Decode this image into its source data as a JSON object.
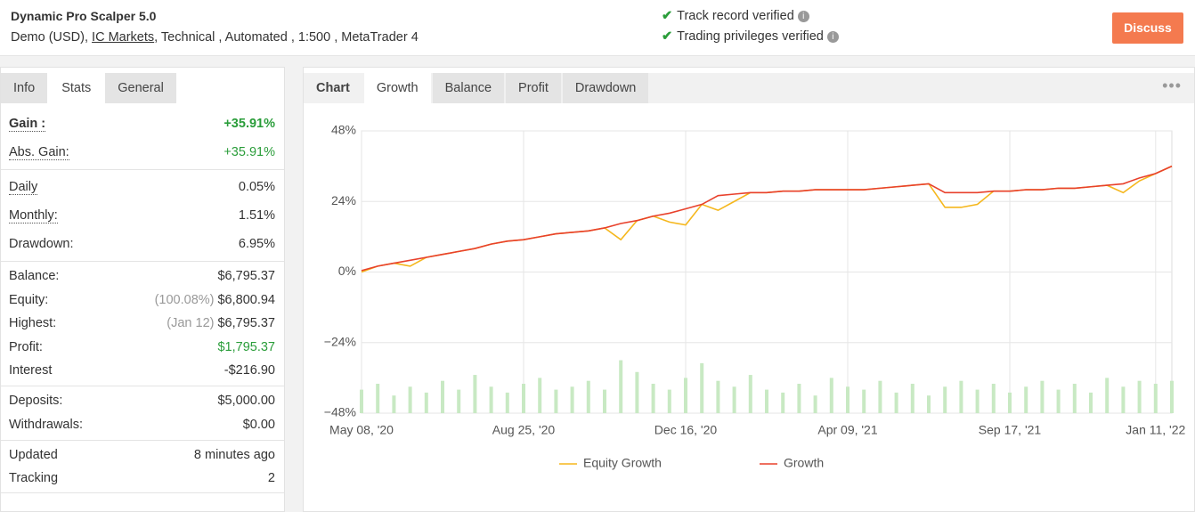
{
  "header": {
    "title": "Dynamic Pro Scalper 5.0",
    "details": [
      "Demo (USD),",
      "IC Markets",
      ", Technical , Automated , 1:500 , MetaTrader 4"
    ],
    "verified": [
      "Track record verified",
      "Trading privileges verified"
    ],
    "button": "Discuss"
  },
  "left_tabs": {
    "items": [
      "Info",
      "Stats",
      "General"
    ],
    "active": 1
  },
  "stats": [
    [
      {
        "label": "Gain :",
        "value": "+35.91%",
        "color": "#2a9d3a",
        "bold": true,
        "dotted": true
      },
      {
        "label": "Abs. Gain:",
        "value": "+35.91%",
        "color": "#2a9d3a",
        "dotted": true
      }
    ],
    [
      {
        "label": "Daily",
        "value": "0.05%",
        "dotted": true
      },
      {
        "label": "Monthly:",
        "value": "1.51%",
        "dotted": true
      },
      {
        "label": "Drawdown:",
        "value": "6.95%"
      }
    ],
    [
      {
        "label": "Balance:",
        "value": "$6,795.37"
      },
      {
        "label": "Equity:",
        "note": "(100.08%)",
        "value": "$6,800.94"
      },
      {
        "label": "Highest:",
        "note": "(Jan 12)",
        "value": "$6,795.37"
      },
      {
        "label": "Profit:",
        "value": "$1,795.37",
        "color": "#2a9d3a"
      },
      {
        "label": "Interest",
        "value": "-$216.90"
      }
    ],
    [
      {
        "label": "Deposits:",
        "value": "$5,000.00"
      },
      {
        "label": "Withdrawals:",
        "value": "$0.00"
      }
    ],
    [
      {
        "label": "Updated",
        "value": "8 minutes ago"
      },
      {
        "label": "Tracking",
        "value": "2"
      }
    ]
  ],
  "chart_tabs": {
    "items": [
      "Chart",
      "Growth",
      "Balance",
      "Profit",
      "Drawdown"
    ],
    "active": 1
  },
  "chart_data": {
    "type": "line",
    "categories": [
      "May 08, '20",
      null,
      null,
      null,
      null,
      null,
      null,
      null,
      null,
      null,
      "Aug 25, '20",
      null,
      null,
      null,
      null,
      null,
      null,
      null,
      null,
      null,
      "Dec 16, '20",
      null,
      null,
      null,
      null,
      null,
      null,
      null,
      null,
      null,
      "Apr 09, '21",
      null,
      null,
      null,
      null,
      null,
      null,
      null,
      null,
      null,
      "Sep 17, '21",
      null,
      null,
      null,
      null,
      null,
      null,
      null,
      null,
      "Jan 11, '22",
      null
    ],
    "ylim": [
      -48,
      48
    ],
    "yticks": [
      {
        "value": 48,
        "label": "48%"
      },
      {
        "value": 24,
        "label": "24%"
      },
      {
        "value": 0,
        "label": "0%"
      },
      {
        "value": -24,
        "label": "−24%"
      },
      {
        "value": -48,
        "label": "−48%"
      }
    ],
    "grid": true,
    "series": [
      {
        "name": "Equity Growth",
        "color": "#f5b71d",
        "values": [
          0,
          2,
          3,
          2,
          5,
          6,
          7,
          8,
          9.5,
          10.5,
          11,
          12,
          13,
          13.5,
          14,
          15,
          11,
          17.5,
          19,
          17,
          16,
          23,
          21,
          24,
          27,
          27,
          27.5,
          27.5,
          28,
          28,
          28,
          28,
          28.5,
          29,
          29.5,
          30,
          22,
          22,
          23,
          27.5,
          27.5,
          28,
          28,
          28.5,
          28.5,
          29,
          29.5,
          27,
          31,
          33.5,
          36
        ]
      },
      {
        "name": "Growth",
        "color": "#e8412c",
        "values": [
          0.5,
          2,
          3,
          4,
          5,
          6,
          7,
          8,
          9.5,
          10.5,
          11,
          12,
          13,
          13.5,
          14,
          15,
          16.5,
          17.5,
          19,
          20,
          21.5,
          23,
          26,
          26.5,
          27,
          27,
          27.5,
          27.5,
          28,
          28,
          28,
          28,
          28.5,
          29,
          29.5,
          30,
          27,
          27,
          27,
          27.5,
          27.5,
          28,
          28,
          28.5,
          28.5,
          29,
          29.5,
          30,
          32,
          33.5,
          36
        ]
      }
    ],
    "bars": {
      "color": "#c8e9c3",
      "values": [
        -40,
        -38,
        -42,
        -39,
        -41,
        -37,
        -40,
        -35,
        -39,
        -41,
        -38,
        -36,
        -40,
        -39,
        -37,
        -40,
        -30,
        -34,
        -38,
        -40,
        -36,
        -31,
        -37,
        -39,
        -35,
        -40,
        -41,
        -38,
        -42,
        -36,
        -39,
        -40,
        -37,
        -41,
        -38,
        -42,
        -39,
        -37,
        -40,
        -38,
        -41,
        -39,
        -37,
        -40,
        -38,
        -41,
        -36,
        -39,
        -37,
        -38,
        -37
      ]
    }
  }
}
